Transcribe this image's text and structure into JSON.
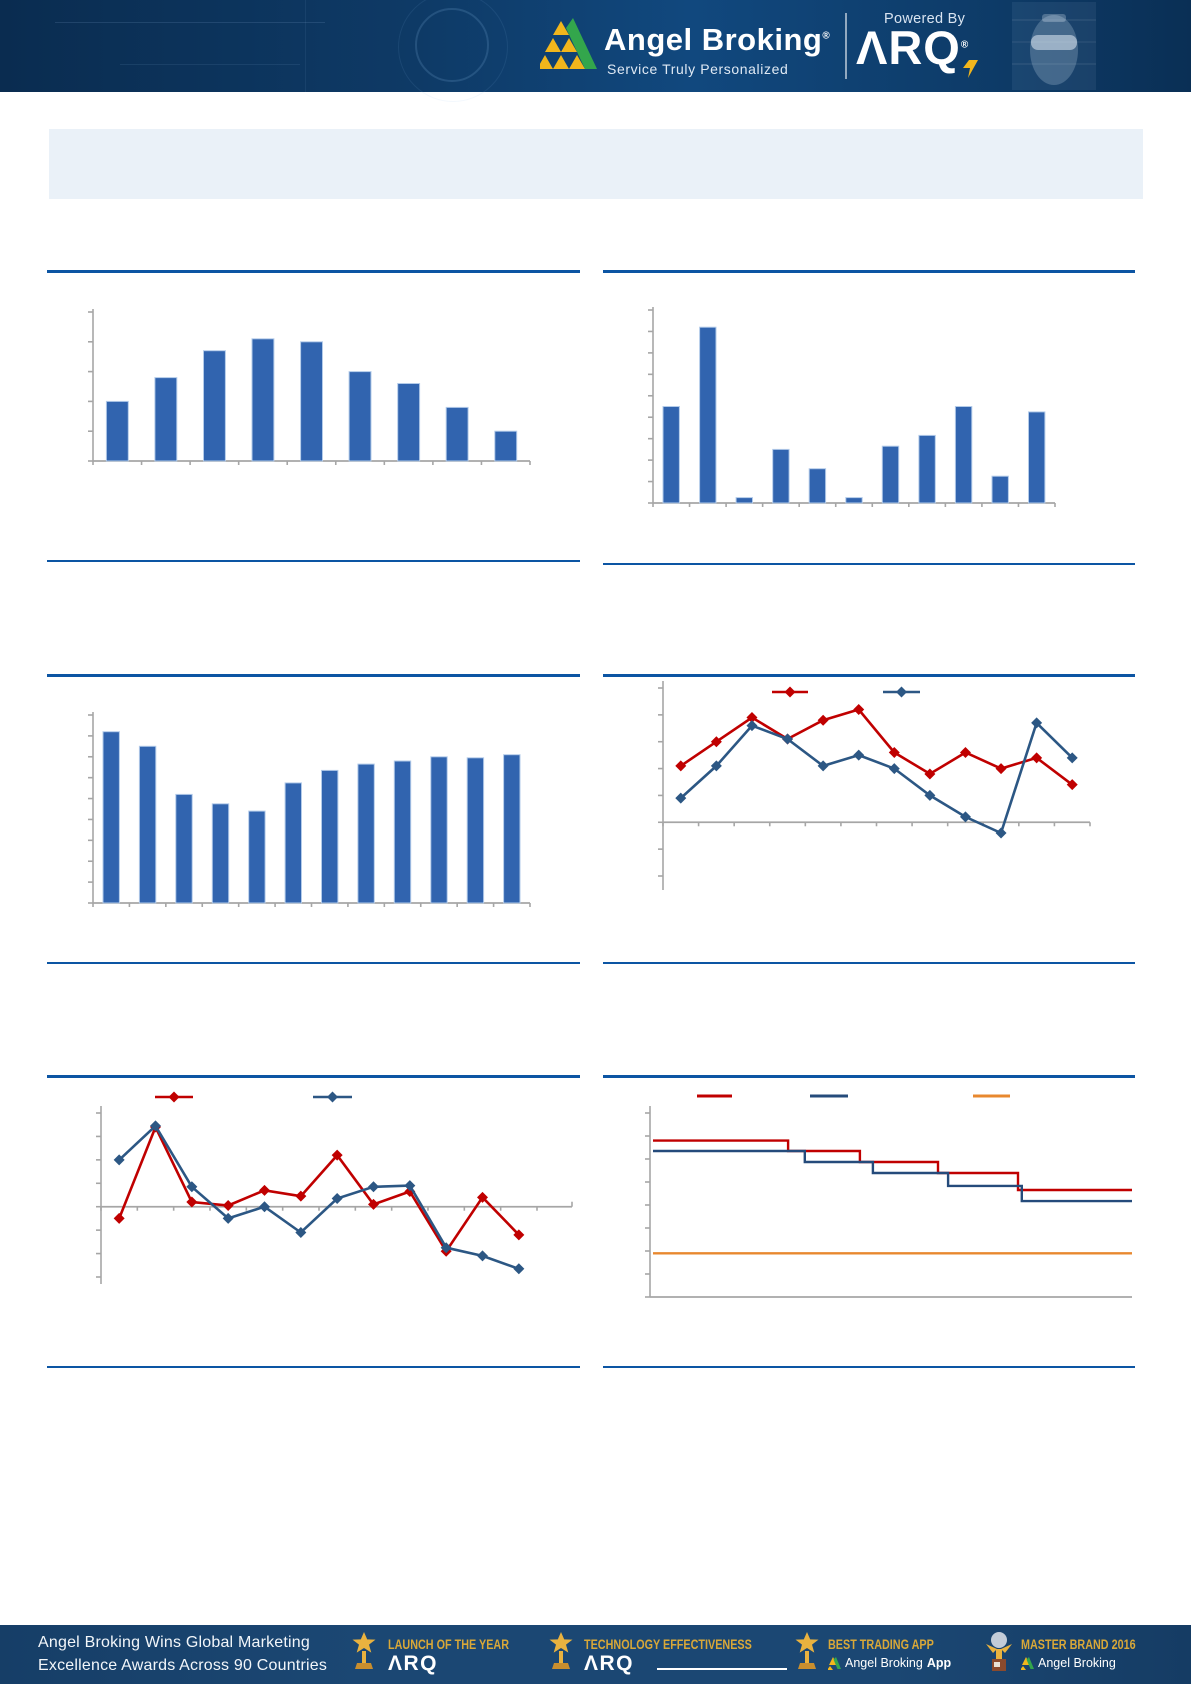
{
  "header": {
    "brand": "Angel Broking",
    "registered_mark": "®",
    "tagline": "Service Truly Personalized",
    "powered_by": "Powered By",
    "arq_logo": "ΛRQ",
    "arq_registered": "®"
  },
  "title_box": {
    "text": ""
  },
  "theme": {
    "divider_blue": "#0c55a3",
    "bar_blue": "#3164af",
    "series_red": "#c00000",
    "series_dark_blue": "#2c5784",
    "series_orange": "#e8882f",
    "axis_gray": "#a6a6a6",
    "title_box_bg": "#eaf1f8",
    "header_bg": "#0e3a66",
    "footer_bg": "#1b4773",
    "footer_gold": "#d9a838",
    "logo_yellow": "#f2b61c",
    "logo_green": "#33a64c"
  },
  "chart_data": [
    {
      "id": "chart1",
      "type": "bar",
      "title": "",
      "categories": [
        "",
        "",
        "",
        "",
        "",
        "",
        "",
        "",
        ""
      ],
      "values": [
        2.0,
        2.8,
        3.7,
        4.1,
        4.0,
        3.0,
        2.6,
        1.8,
        1.0
      ],
      "ylim": [
        0,
        5
      ],
      "ytick_count": 6,
      "grid": false,
      "legend": null,
      "bar_color": "#3164af",
      "xlabel": "",
      "ylabel": ""
    },
    {
      "id": "chart2",
      "type": "bar",
      "title": "",
      "categories": [
        "",
        "",
        "",
        "",
        "",
        "",
        "",
        "",
        "",
        "",
        ""
      ],
      "values": [
        4.5,
        8.2,
        0.25,
        2.5,
        1.6,
        0.25,
        2.65,
        3.15,
        4.5,
        1.25,
        4.25
      ],
      "ylim": [
        0,
        9
      ],
      "ytick_count": 10,
      "grid": false,
      "legend": null,
      "bar_color": "#3164af",
      "xlabel": "",
      "ylabel": ""
    },
    {
      "id": "chart3",
      "type": "bar",
      "title": "",
      "categories": [
        "",
        "",
        "",
        "",
        "",
        "",
        "",
        "",
        "",
        "",
        "",
        ""
      ],
      "values": [
        8.2,
        7.5,
        5.2,
        4.75,
        4.4,
        5.75,
        6.35,
        6.65,
        6.8,
        7.0,
        6.95,
        7.1
      ],
      "ylim": [
        0,
        9
      ],
      "ytick_count": 10,
      "grid": false,
      "legend": null,
      "bar_color": "#3164af",
      "xlabel": "",
      "ylabel": ""
    },
    {
      "id": "chart4",
      "type": "line",
      "title": "",
      "x_count": 12,
      "categories": [
        "",
        "",
        "",
        "",
        "",
        "",
        "",
        "",
        "",
        "",
        "",
        ""
      ],
      "series": [
        {
          "name": "",
          "color": "#c00000",
          "marker": "diamond",
          "values": [
            2.1,
            3.0,
            3.9,
            3.1,
            3.8,
            4.2,
            2.6,
            1.8,
            2.6,
            2.0,
            2.4,
            1.4
          ]
        },
        {
          "name": "",
          "color": "#2c5784",
          "marker": "diamond",
          "values": [
            0.9,
            2.1,
            3.6,
            3.1,
            2.1,
            2.5,
            2.0,
            1.0,
            0.2,
            -0.4,
            3.7,
            2.4
          ]
        }
      ],
      "ylim": [
        -2,
        5
      ],
      "ytick_step": 1,
      "legend_position": "top",
      "grid": false
    },
    {
      "id": "chart5",
      "type": "line",
      "title": "",
      "x_count": 12,
      "categories": [
        "",
        "",
        "",
        "",
        "",
        "",
        "",
        "",
        "",
        "",
        "",
        ""
      ],
      "series": [
        {
          "name": "",
          "color": "#c00000",
          "marker": "diamond",
          "values": [
            -0.5,
            3.4,
            0.2,
            0.05,
            0.7,
            0.45,
            2.2,
            0.1,
            0.65,
            -1.9,
            0.4,
            -1.2
          ]
        },
        {
          "name": "",
          "color": "#2c5784",
          "marker": "diamond",
          "values": [
            2.0,
            3.45,
            0.85,
            -0.5,
            0.0,
            -1.1,
            0.35,
            0.85,
            0.9,
            -1.75,
            -2.1,
            -2.65
          ]
        }
      ],
      "ylim": [
        -3,
        4
      ],
      "ytick_step": 1,
      "legend_position": "top",
      "grid": false
    },
    {
      "id": "chart6",
      "type": "step",
      "title": "",
      "series": [
        {
          "name": "",
          "color": "#c00000",
          "levels": [
            6.8,
            6.35,
            5.87,
            5.39,
            4.65
          ],
          "breaks": [
            0.282,
            0.432,
            0.595,
            0.762
          ]
        },
        {
          "name": "",
          "color": "#254b7b",
          "levels": [
            6.35,
            5.87,
            5.39,
            4.83,
            4.17
          ],
          "breaks": [
            0.317,
            0.459,
            0.616,
            0.77
          ]
        },
        {
          "name": "",
          "color": "#e8882f",
          "constant": 1.9
        }
      ],
      "ylim": [
        0,
        8
      ],
      "ytick_count": 9,
      "legend_position": "top",
      "grid": false
    }
  ],
  "footer": {
    "left_line1": "Angel Broking Wins Global Marketing",
    "left_line2": "Excellence Awards Across 90 Countries",
    "awards": [
      {
        "title": "LAUNCH OF THE YEAR",
        "subtitle": "ΛRQ",
        "icon": "trophy-star"
      },
      {
        "title": "TECHNOLOGY EFFECTIVENESS",
        "subtitle": "ΛRQ",
        "icon": "trophy-star"
      },
      {
        "title": "BEST TRADING APP",
        "subtitle": "Angel Broking",
        "subtitle_bold": "App",
        "icon": "trophy-star"
      },
      {
        "title": "MASTER BRAND 2016",
        "subtitle": "Angel Broking",
        "subtitle_bold": "",
        "icon": "trophy-globe"
      }
    ]
  }
}
